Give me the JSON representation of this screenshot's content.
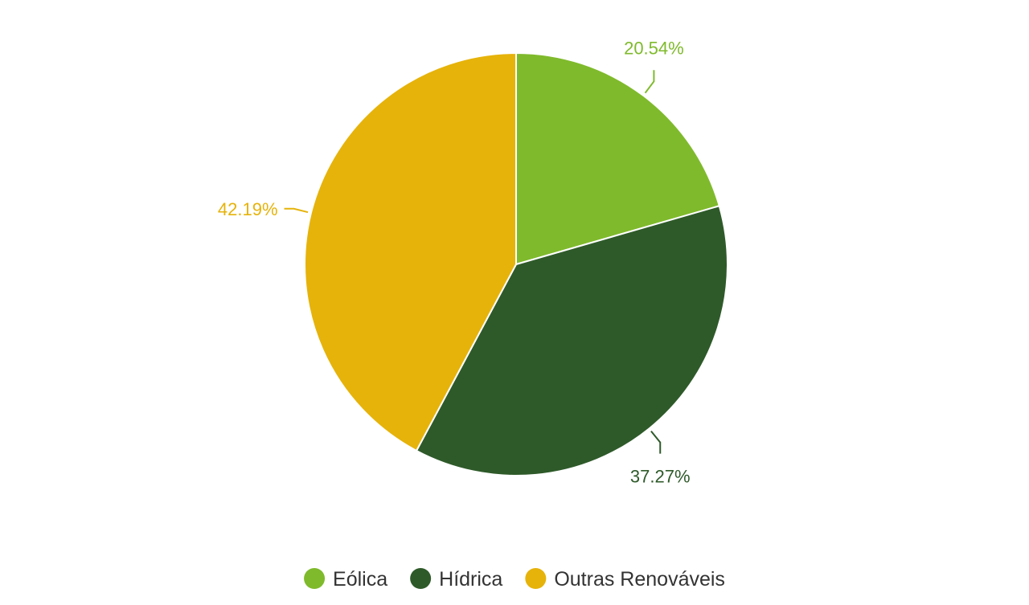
{
  "chart_data": {
    "type": "pie",
    "title": "",
    "legend_position": "bottom",
    "slices": [
      {
        "name": "Eólica",
        "value": 20.54,
        "label": "20.54%",
        "color": "#7fba2c"
      },
      {
        "name": "Hídrica",
        "value": 37.27,
        "label": "37.27%",
        "color": "#2e5a29"
      },
      {
        "name": "Outras Renováveis",
        "value": 42.19,
        "label": "42.19%",
        "color": "#e6b30a"
      }
    ]
  }
}
